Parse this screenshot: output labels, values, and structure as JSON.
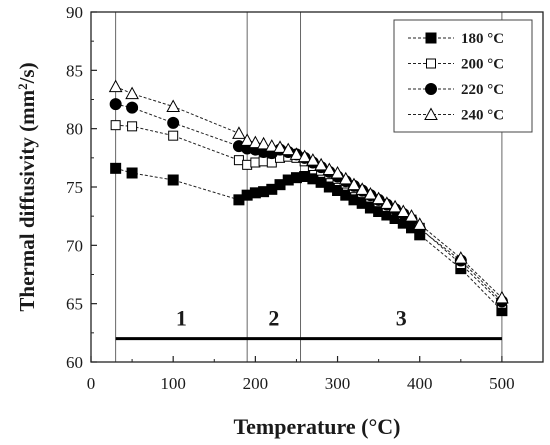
{
  "chart_data": {
    "type": "line",
    "title": "",
    "xlabel": "Temperature (°C)",
    "ylabel_main": "Thermal diffusivity (mm",
    "ylabel_sup": "2",
    "ylabel_tail": "/s)",
    "xlim": [
      0,
      550
    ],
    "ylim": [
      60,
      90
    ],
    "xticks": [
      0,
      100,
      200,
      300,
      400,
      500
    ],
    "yticks": [
      60,
      65,
      70,
      75,
      80,
      85,
      90
    ],
    "legend_position": "top-right",
    "series": [
      {
        "name": "180 °C",
        "marker": "square-filled",
        "x": [
          30,
          50,
          100,
          180,
          190,
          200,
          210,
          220,
          230,
          240,
          250,
          260,
          270,
          280,
          290,
          300,
          310,
          320,
          330,
          340,
          350,
          360,
          370,
          380,
          390,
          400,
          450,
          500
        ],
        "y": [
          76.6,
          76.2,
          75.6,
          73.9,
          74.3,
          74.5,
          74.6,
          74.8,
          75.2,
          75.6,
          75.8,
          75.9,
          75.7,
          75.4,
          75.0,
          74.7,
          74.3,
          73.9,
          73.6,
          73.2,
          72.9,
          72.6,
          72.3,
          71.9,
          71.5,
          70.9,
          68.0,
          64.4
        ]
      },
      {
        "name": "200 °C",
        "marker": "square-open",
        "x": [
          30,
          50,
          100,
          180,
          190,
          200,
          210,
          220,
          230,
          240,
          250,
          260,
          270,
          280,
          290,
          300,
          310,
          320,
          330,
          340,
          350,
          360,
          370,
          380,
          390,
          400,
          450,
          500
        ],
        "y": [
          80.3,
          80.2,
          79.4,
          77.3,
          76.9,
          77.1,
          77.2,
          77.1,
          77.5,
          77.6,
          77.5,
          77.2,
          76.8,
          76.4,
          76.1,
          75.7,
          75.3,
          74.9,
          74.5,
          74.1,
          73.7,
          73.3,
          73.0,
          72.6,
          72.2,
          71.5,
          68.4,
          65.0
        ]
      },
      {
        "name": "220 °C",
        "marker": "circle-filled",
        "x": [
          30,
          50,
          100,
          180,
          190,
          200,
          210,
          220,
          230,
          240,
          250,
          260,
          270,
          280,
          290,
          300,
          310,
          320,
          330,
          340,
          350,
          360,
          370,
          380,
          390,
          400,
          450,
          500
        ],
        "y": [
          82.1,
          81.8,
          80.5,
          78.5,
          78.3,
          78.2,
          78.0,
          77.9,
          78.2,
          78.0,
          77.8,
          77.5,
          77.1,
          76.7,
          76.3,
          75.9,
          75.5,
          75.1,
          74.7,
          74.3,
          73.9,
          73.5,
          73.1,
          72.7,
          72.2,
          71.4,
          68.7,
          65.2
        ]
      },
      {
        "name": "240 °C",
        "marker": "triangle-open",
        "x": [
          30,
          50,
          100,
          180,
          190,
          200,
          210,
          220,
          230,
          240,
          250,
          260,
          270,
          280,
          290,
          300,
          310,
          320,
          330,
          340,
          350,
          360,
          370,
          380,
          390,
          400,
          450,
          500
        ],
        "y": [
          83.6,
          83.0,
          81.9,
          79.6,
          79.0,
          78.8,
          78.7,
          78.5,
          78.4,
          78.2,
          77.8,
          77.6,
          77.3,
          76.9,
          76.5,
          76.2,
          75.7,
          75.2,
          74.8,
          74.4,
          74.0,
          73.6,
          73.3,
          72.9,
          72.5,
          71.8,
          68.9,
          65.5
        ]
      }
    ],
    "regions": [
      {
        "label": "1",
        "x_start": 30,
        "x_end": 190
      },
      {
        "label": "2",
        "x_start": 190,
        "x_end": 255
      },
      {
        "label": "3",
        "x_start": 255,
        "x_end": 500
      }
    ],
    "region_line_y": 62,
    "region_boundaries_x": [
      30,
      190,
      255,
      500
    ]
  }
}
